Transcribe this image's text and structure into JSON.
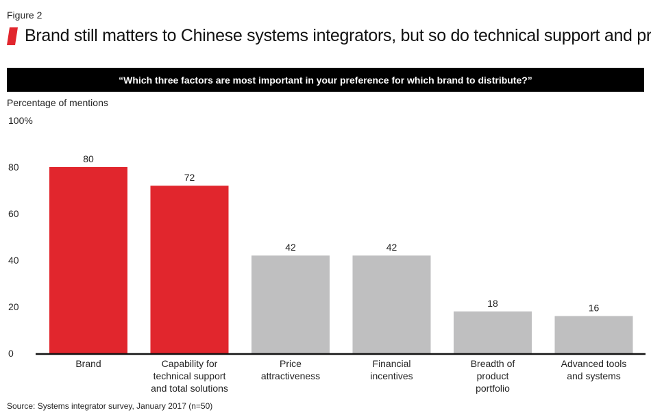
{
  "figure_label": "Figure 2",
  "title": "Brand still matters to Chinese systems integrators, but so do technical support and price",
  "question": "“Which three factors are most important in your preference for which brand to distribute?”",
  "source": "Source: Systems integrator survey, January 2017 (n=50)",
  "colors": {
    "highlight": "#e1262d",
    "neutral": "#bfbfc0",
    "axis": "#111111"
  },
  "chart_data": {
    "type": "bar",
    "ylabel": "Percentage of mentions",
    "ylim": [
      0,
      100
    ],
    "y_ticks": [
      0,
      20,
      40,
      60,
      80
    ],
    "y_top_label": "100%",
    "categories": [
      "Brand",
      "Capability for technical support and total solutions",
      "Price attractiveness",
      "Financial incentives",
      "Breadth of product portfolio",
      "Advanced tools and systems"
    ],
    "category_lines": [
      [
        "Brand"
      ],
      [
        "Capability for",
        "technical support",
        "and total solutions"
      ],
      [
        "Price",
        "attractiveness"
      ],
      [
        "Financial",
        "incentives"
      ],
      [
        "Breadth of",
        "product",
        "portfolio"
      ],
      [
        "Advanced tools",
        "and systems"
      ]
    ],
    "values": [
      80,
      72,
      42,
      42,
      18,
      16
    ],
    "highlighted": [
      true,
      true,
      false,
      false,
      false,
      false
    ],
    "grid": false,
    "legend": "none"
  }
}
